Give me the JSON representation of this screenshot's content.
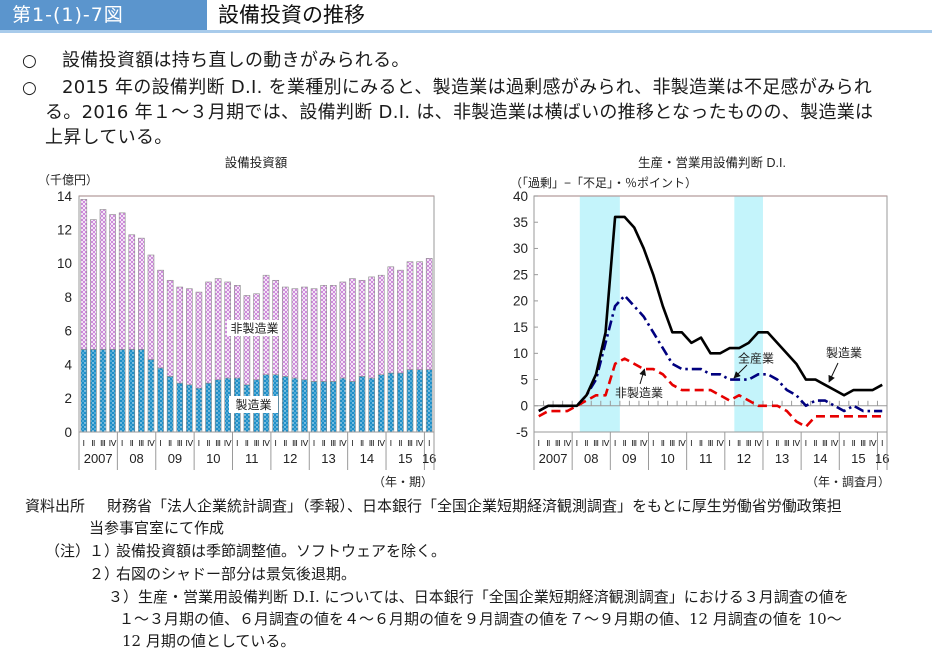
{
  "header": {
    "figure_number": "第1-(1)-7図",
    "title": "設備投資の推移"
  },
  "summary": {
    "marker": "○",
    "items": [
      {
        "lines": [
          "設備投資額は持ち直しの動きがみられる。"
        ]
      },
      {
        "lines": [
          "2015 年の設備判断 D.I. を業種別にみると、製造業は過剰感がみられ、非製造業は不足感がみられ",
          "る。2016 年１～３月期では、設備判断 D.I. は、非製造業は横ばいの推移となったものの、製造業は",
          "上昇している。"
        ]
      }
    ]
  },
  "colors": {
    "header_bg": "#5b95cd",
    "header_text": "#ffffff",
    "header_rule": "#a8cbeb",
    "bar_manufacturing": "#1e8fc8",
    "bar_manufacturing_dot": "#d8f0fb",
    "bar_non_manufacturing": "#c77ad6",
    "bar_outline": "#8a8a8a",
    "recession_shade": "#c4f4fb",
    "axis": "#9a9a9a"
  },
  "chart_data": [
    {
      "type": "bar",
      "stacked": true,
      "title": "設備投資額",
      "ylabel": "（千億円）",
      "xlabel": "（年・期）",
      "ylim": [
        0,
        14
      ],
      "yticks": [
        0,
        2,
        4,
        6,
        8,
        10,
        12,
        14
      ],
      "grid": false,
      "years": [
        {
          "label": "2007",
          "quarters": [
            "Ⅰ",
            "Ⅱ",
            "Ⅲ",
            "Ⅳ"
          ]
        },
        {
          "label": "08",
          "quarters": [
            "Ⅰ",
            "Ⅱ",
            "Ⅲ",
            "Ⅳ"
          ]
        },
        {
          "label": "09",
          "quarters": [
            "Ⅰ",
            "Ⅱ",
            "Ⅲ",
            "Ⅳ"
          ]
        },
        {
          "label": "10",
          "quarters": [
            "Ⅰ",
            "Ⅱ",
            "Ⅲ",
            "Ⅳ"
          ]
        },
        {
          "label": "11",
          "quarters": [
            "Ⅰ",
            "Ⅱ",
            "Ⅲ",
            "Ⅳ"
          ]
        },
        {
          "label": "12",
          "quarters": [
            "Ⅰ",
            "Ⅱ",
            "Ⅲ",
            "Ⅳ"
          ]
        },
        {
          "label": "13",
          "quarters": [
            "Ⅰ",
            "Ⅱ",
            "Ⅲ",
            "Ⅳ"
          ]
        },
        {
          "label": "14",
          "quarters": [
            "Ⅰ",
            "Ⅱ",
            "Ⅲ",
            "Ⅳ"
          ]
        },
        {
          "label": "15",
          "quarters": [
            "Ⅰ",
            "Ⅱ",
            "Ⅲ",
            "Ⅳ"
          ]
        },
        {
          "label": "16",
          "quarters": [
            "Ⅰ"
          ]
        }
      ],
      "series": [
        {
          "name": "製造業",
          "values": [
            4.9,
            4.9,
            4.9,
            4.9,
            4.9,
            4.9,
            4.9,
            4.3,
            3.8,
            3.3,
            2.9,
            2.8,
            2.6,
            2.9,
            3.1,
            3.2,
            3.2,
            2.8,
            3.1,
            3.4,
            3.4,
            3.3,
            3.2,
            3.1,
            3.0,
            3.0,
            3.0,
            3.2,
            3.0,
            3.3,
            3.2,
            3.4,
            3.5,
            3.5,
            3.7,
            3.7,
            3.7
          ]
        },
        {
          "name": "非製造業",
          "values": [
            8.9,
            7.7,
            8.3,
            8.0,
            8.1,
            6.8,
            6.6,
            6.2,
            5.8,
            5.7,
            5.7,
            5.7,
            5.7,
            6.0,
            6.0,
            5.7,
            5.5,
            5.3,
            5.1,
            5.9,
            5.6,
            5.3,
            5.3,
            5.5,
            5.5,
            5.7,
            5.7,
            5.7,
            6.1,
            5.7,
            6.0,
            5.9,
            6.3,
            6.1,
            6.4,
            6.4,
            6.6
          ]
        }
      ]
    },
    {
      "type": "line",
      "title": "生産・営業用設備判断 D.I.",
      "ylabel": "（「過剰」−「不足」・％ポイント）",
      "xlabel": "（年・調査月）",
      "ylim": [
        -5,
        40
      ],
      "yticks": [
        -5,
        0,
        5,
        10,
        15,
        20,
        25,
        30,
        35,
        40
      ],
      "grid": false,
      "years": [
        {
          "label": "2007",
          "quarters": [
            "Ⅰ",
            "Ⅱ",
            "Ⅲ",
            "Ⅳ"
          ]
        },
        {
          "label": "08",
          "quarters": [
            "Ⅰ",
            "Ⅱ",
            "Ⅲ",
            "Ⅳ"
          ]
        },
        {
          "label": "09",
          "quarters": [
            "Ⅰ",
            "Ⅱ",
            "Ⅲ",
            "Ⅳ"
          ]
        },
        {
          "label": "10",
          "quarters": [
            "Ⅰ",
            "Ⅱ",
            "Ⅲ",
            "Ⅳ"
          ]
        },
        {
          "label": "11",
          "quarters": [
            "Ⅰ",
            "Ⅱ",
            "Ⅲ",
            "Ⅳ"
          ]
        },
        {
          "label": "12",
          "quarters": [
            "Ⅰ",
            "Ⅱ",
            "Ⅲ",
            "Ⅳ"
          ]
        },
        {
          "label": "13",
          "quarters": [
            "Ⅰ",
            "Ⅱ",
            "Ⅲ",
            "Ⅳ"
          ]
        },
        {
          "label": "14",
          "quarters": [
            "Ⅰ",
            "Ⅱ",
            "Ⅲ",
            "Ⅳ"
          ]
        },
        {
          "label": "15",
          "quarters": [
            "Ⅰ",
            "Ⅱ",
            "Ⅲ",
            "Ⅳ"
          ]
        },
        {
          "label": "16",
          "quarters": [
            "Ⅰ"
          ]
        }
      ],
      "shaded_periods": [
        {
          "from": 2008.2,
          "to": 2009.25
        },
        {
          "from": 2012.25,
          "to": 2013.0
        }
      ],
      "series": [
        {
          "name": "製造業",
          "color": "#000000",
          "values": [
            -1,
            0,
            0,
            0,
            0,
            2,
            6,
            14,
            36,
            36,
            34,
            30,
            25,
            19,
            14,
            14,
            12,
            13,
            10,
            10,
            11,
            11,
            12,
            14,
            14,
            12,
            10,
            8,
            5,
            5,
            4,
            3,
            2,
            3,
            3,
            3,
            4
          ]
        },
        {
          "name": "全産業",
          "color": "#00007f",
          "values": [
            -1,
            0,
            0,
            0,
            0,
            2,
            5,
            12,
            19,
            21,
            19,
            17,
            14,
            11,
            8,
            7,
            7,
            7,
            6,
            6,
            5,
            5,
            5,
            6,
            6,
            5,
            3,
            2,
            0,
            1,
            1,
            0,
            -1,
            0,
            -1,
            -1,
            -1
          ]
        },
        {
          "name": "非製造業",
          "color": "#e60000",
          "values": [
            -2,
            -1,
            -1,
            -1,
            0,
            1,
            2,
            2,
            8,
            9,
            8,
            7,
            7,
            6,
            4,
            3,
            3,
            3,
            3,
            2,
            1,
            2,
            1,
            0,
            0,
            0,
            -1,
            -3,
            -4,
            -2,
            -2,
            -2,
            -2,
            -2,
            -2,
            -2,
            -2
          ]
        }
      ]
    }
  ],
  "notes": {
    "source_label": "資料出所",
    "source_lines": [
      "財務省「法人企業統計調査」（季報）、日本銀行「全国企業短期経済観測調査」をもとに厚生労働省労働政策担",
      "当参事官室にて作成"
    ],
    "note_label": "（注）",
    "items": [
      {
        "num": "１）",
        "lines": [
          "設備投資額は季節調整値。ソフトウェアを除く。"
        ]
      },
      {
        "num": "２）",
        "lines": [
          "右図のシャドー部分は景気後退期。"
        ]
      },
      {
        "num": "３）",
        "lines": [
          "生産・営業用設備判断 D.I. については、日本銀行「全国企業短期経済観測調査」における３月調査の値を",
          "１～３月期の値、６月調査の値を４～６月期の値を９月調査の値を７～９月期の値、12 月調査の値を 10～",
          "12 月期の値としている。"
        ]
      }
    ]
  }
}
